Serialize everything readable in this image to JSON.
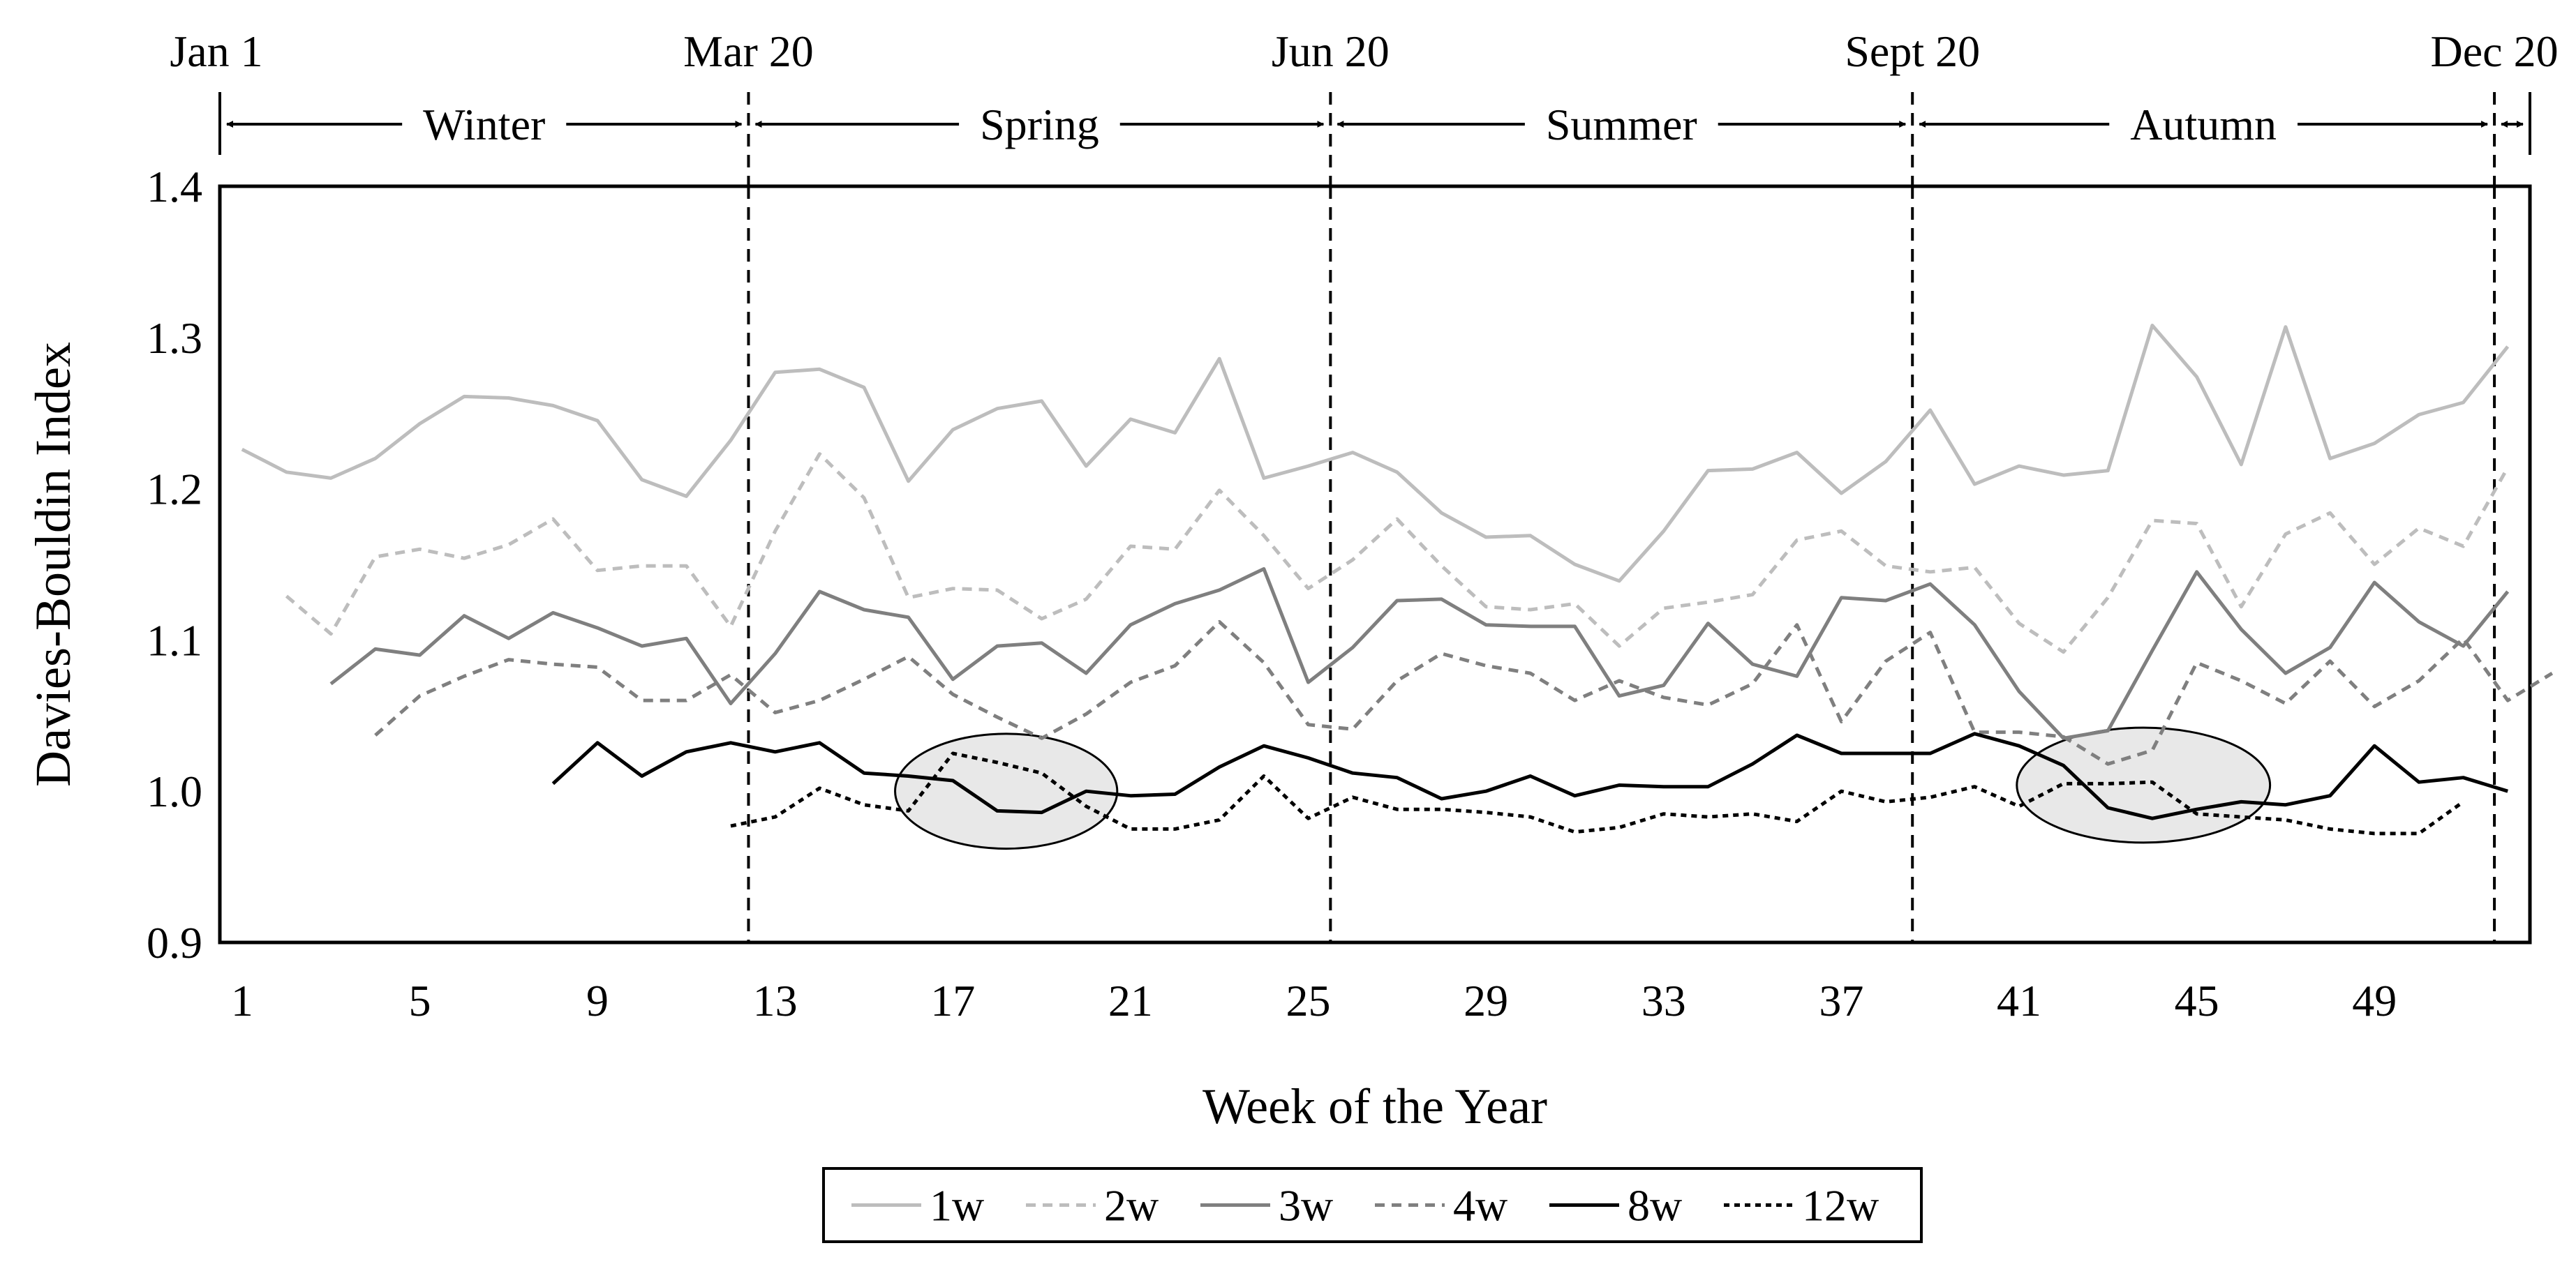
{
  "chart_data": {
    "type": "line",
    "xlabel": "Week of the Year",
    "ylabel": "Davies-Bouldin Index",
    "xlim": [
      0.5,
      52.5
    ],
    "ylim": [
      0.9,
      1.4
    ],
    "xticks": [
      1,
      5,
      9,
      13,
      17,
      21,
      25,
      29,
      33,
      37,
      41,
      45,
      49
    ],
    "yticks": [
      0.9,
      1.0,
      1.1,
      1.2,
      1.3,
      1.4
    ],
    "ytick_labels": [
      "0.9",
      "1.0",
      "1.1",
      "1.2",
      "1.3",
      "1.4"
    ],
    "legend_position": "bottom-center",
    "series": [
      {
        "name": "1w",
        "color": "#bdbdbd",
        "dash": "solid",
        "start_week": 1,
        "values": [
          1.226,
          1.211,
          1.207,
          1.22,
          1.243,
          1.261,
          1.26,
          1.255,
          1.245,
          1.206,
          1.195,
          1.232,
          1.277,
          1.279,
          1.267,
          1.205,
          1.239,
          1.253,
          1.258,
          1.215,
          1.246,
          1.237,
          1.286,
          1.207,
          1.215,
          1.224,
          1.211,
          1.184,
          1.168,
          1.169,
          1.15,
          1.139,
          1.172,
          1.212,
          1.213,
          1.224,
          1.197,
          1.218,
          1.252,
          1.203,
          1.215,
          1.209,
          1.212,
          1.308,
          1.274,
          1.216,
          1.307,
          1.22,
          1.23,
          1.249,
          1.257,
          1.294
        ]
      },
      {
        "name": "2w",
        "color": "#bdbdbd",
        "dash": "short",
        "start_week": 2,
        "values": [
          1.129,
          1.104,
          1.155,
          1.16,
          1.154,
          1.163,
          1.18,
          1.146,
          1.149,
          1.149,
          1.109,
          1.172,
          1.223,
          1.194,
          1.128,
          1.134,
          1.133,
          1.114,
          1.127,
          1.162,
          1.16,
          1.199,
          1.169,
          1.134,
          1.153,
          1.18,
          1.149,
          1.122,
          1.12,
          1.124,
          1.096,
          1.121,
          1.125,
          1.13,
          1.166,
          1.172,
          1.149,
          1.145,
          1.148,
          1.111,
          1.092,
          1.128,
          1.179,
          1.177,
          1.122,
          1.17,
          1.184,
          1.15,
          1.174,
          1.162,
          1.214
        ]
      },
      {
        "name": "3w",
        "color": "#7f7f7f",
        "dash": "solid",
        "start_week": 3,
        "values": [
          1.071,
          1.094,
          1.09,
          1.116,
          1.101,
          1.118,
          1.108,
          1.096,
          1.101,
          1.058,
          1.091,
          1.132,
          1.12,
          1.115,
          1.074,
          1.096,
          1.098,
          1.078,
          1.11,
          1.124,
          1.133,
          1.147,
          1.072,
          1.095,
          1.126,
          1.127,
          1.11,
          1.109,
          1.109,
          1.063,
          1.07,
          1.111,
          1.084,
          1.076,
          1.128,
          1.126,
          1.137,
          1.11,
          1.066,
          1.035,
          1.04,
          1.093,
          1.145,
          1.107,
          1.078,
          1.095,
          1.138,
          1.112,
          1.096,
          1.132
        ]
      },
      {
        "name": "4w",
        "color": "#7f7f7f",
        "dash": "short",
        "start_week": 4,
        "values": [
          1.037,
          1.063,
          1.076,
          1.087,
          1.084,
          1.082,
          1.06,
          1.06,
          1.077,
          1.052,
          1.06,
          1.074,
          1.089,
          1.064,
          1.049,
          1.035,
          1.051,
          1.072,
          1.083,
          1.112,
          1.085,
          1.044,
          1.041,
          1.073,
          1.091,
          1.083,
          1.078,
          1.06,
          1.073,
          1.062,
          1.057,
          1.071,
          1.11,
          1.046,
          1.086,
          1.105,
          1.039,
          1.039,
          1.036,
          1.018,
          1.027,
          1.085,
          1.073,
          1.058,
          1.086,
          1.056,
          1.073,
          1.101,
          1.06,
          1.078
        ]
      },
      {
        "name": "8w",
        "color": "#000000",
        "dash": "solid",
        "start_week": 8,
        "values": [
          1.005,
          1.032,
          1.01,
          1.026,
          1.032,
          1.026,
          1.032,
          1.012,
          1.01,
          1.007,
          0.987,
          0.986,
          1.0,
          0.997,
          0.998,
          1.016,
          1.03,
          1.022,
          1.012,
          1.009,
          0.995,
          1.0,
          1.01,
          0.997,
          1.004,
          1.003,
          1.003,
          1.018,
          1.037,
          1.025,
          1.025,
          1.025,
          1.038,
          1.03,
          1.017,
          0.989,
          0.982,
          0.988,
          0.993,
          0.991,
          0.997,
          1.03,
          1.006,
          1.009,
          1.0
        ]
      },
      {
        "name": "12w",
        "color": "#000000",
        "dash": "dot",
        "start_week": 12,
        "values": [
          0.977,
          0.983,
          1.002,
          0.991,
          0.987,
          1.025,
          1.019,
          1.012,
          0.99,
          0.975,
          0.975,
          0.981,
          1.01,
          0.982,
          0.996,
          0.988,
          0.988,
          0.986,
          0.983,
          0.973,
          0.976,
          0.985,
          0.983,
          0.985,
          0.98,
          1.0,
          0.993,
          0.996,
          1.003,
          0.99,
          1.005,
          1.005,
          1.006,
          0.985,
          0.983,
          0.981,
          0.975,
          0.972,
          0.972,
          0.993
        ]
      }
    ],
    "season_markers": {
      "dates": [
        {
          "label": "Jan 1",
          "week": 0.5
        },
        {
          "label": "Mar 20",
          "week": 12.4
        },
        {
          "label": "Jun 20",
          "week": 25.5
        },
        {
          "label": "Sept 20",
          "week": 38.6
        },
        {
          "label": "Dec 20",
          "week": 51.7
        }
      ],
      "seasons": [
        {
          "label": "Winter",
          "from": 0.5,
          "to": 12.4
        },
        {
          "label": "Spring",
          "from": 12.4,
          "to": 25.5
        },
        {
          "label": "Summer",
          "from": 25.5,
          "to": 38.6
        },
        {
          "label": "Autumn",
          "from": 38.6,
          "to": 51.7
        },
        {
          "label": "",
          "from": 51.7,
          "to": 52.5
        }
      ]
    },
    "highlights": [
      {
        "center_week": 18.2,
        "center_value": 1.0,
        "week_radius": 2.5,
        "value_radius": 0.038
      },
      {
        "center_week": 43.8,
        "center_value": 1.004,
        "week_radius": 2.85,
        "value_radius": 0.038
      }
    ]
  }
}
